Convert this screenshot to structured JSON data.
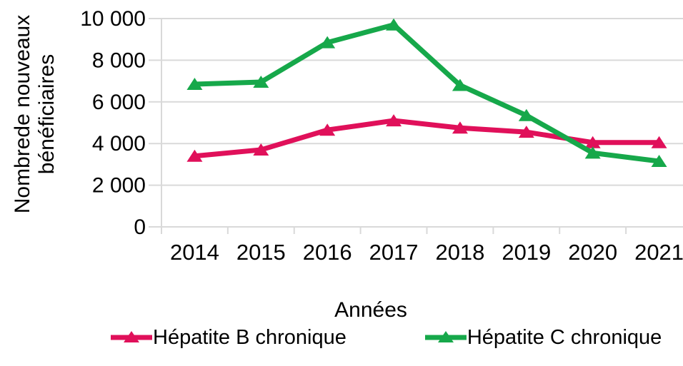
{
  "chart_data": {
    "type": "line",
    "categories": [
      "2014",
      "2015",
      "2016",
      "2017",
      "2018",
      "2019",
      "2020",
      "2021"
    ],
    "series": [
      {
        "name": "Hépatite B chronique",
        "color": "#E0105A",
        "marker": "triangle-up",
        "values": [
          3400,
          3700,
          4650,
          5100,
          4750,
          4550,
          4050,
          4050
        ]
      },
      {
        "name": "Hépatite C chronique",
        "color": "#16A84A",
        "marker": "triangle-up",
        "values": [
          6850,
          6950,
          8850,
          9700,
          6800,
          5350,
          3550,
          3150
        ]
      }
    ],
    "title": "",
    "xlabel": "Années",
    "ylabel": "Nombrede nouveaux bénéficiaires",
    "ylabel_lines": [
      "Nombrede nouveaux",
      "bénéficiaires"
    ],
    "ylim": [
      0,
      10000
    ],
    "yticks": [
      {
        "value": 0,
        "label": "0"
      },
      {
        "value": 2000,
        "label": "2 000"
      },
      {
        "value": 4000,
        "label": "4 000"
      },
      {
        "value": 6000,
        "label": "6 000"
      },
      {
        "value": 8000,
        "label": "8 000"
      },
      {
        "value": 10000,
        "label": "10 000"
      }
    ],
    "grid": "horizontal",
    "grid_color": "#D9D9D9",
    "axis_color": "#D9D9D9",
    "text_color": "#000000",
    "legend_position": "bottom"
  }
}
